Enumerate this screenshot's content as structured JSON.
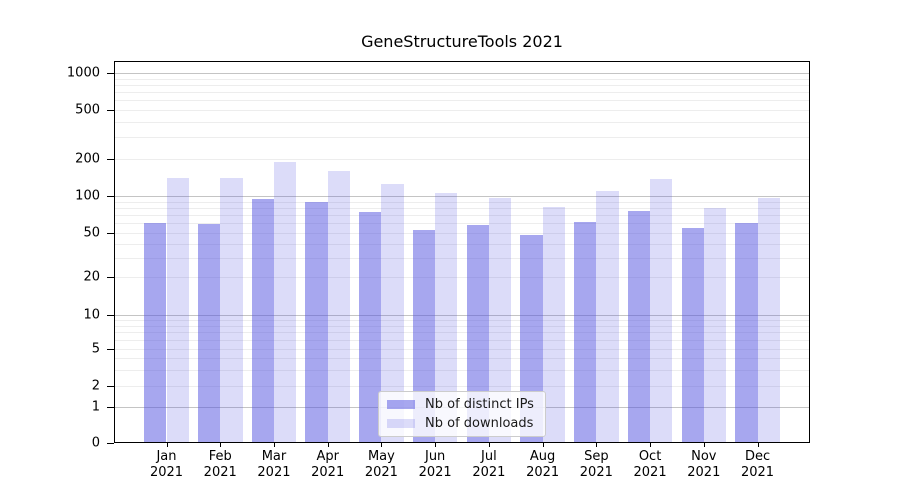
{
  "chart_data": {
    "type": "bar",
    "title": "GeneStructureTools 2021",
    "categories": [
      "Jan\n2021",
      "Feb\n2021",
      "Mar\n2021",
      "Apr\n2021",
      "May\n2021",
      "Jun\n2021",
      "Jul\n2021",
      "Aug\n2021",
      "Sep\n2021",
      "Oct\n2021",
      "Nov\n2021",
      "Dec\n2021"
    ],
    "series": [
      {
        "name": "Nb of distinct IPs",
        "color": "rgba(80,80,224,0.5)",
        "color_hex_on_white": "#a8a8f0",
        "values": [
          60,
          59,
          95,
          89,
          74,
          53,
          58,
          48,
          62,
          75,
          55,
          60
        ]
      },
      {
        "name": "Nb of downloads",
        "color": "rgba(80,80,224,0.2)",
        "color_hex_on_white": "#dcdcf9",
        "values": [
          140,
          140,
          188,
          160,
          125,
          105,
          96,
          82,
          110,
          138,
          80,
          96
        ]
      }
    ],
    "xlabel": "",
    "ylabel": "",
    "y_axis": {
      "scale": "log (symlog with linear 0-1 segment)",
      "tick_labels": [
        1000,
        500,
        200,
        100,
        50,
        20,
        10,
        5,
        2,
        1,
        0
      ],
      "ylim": [
        0,
        1250
      ]
    },
    "grid": "on (major + faint log minors)",
    "legend": {
      "position": "lower center inside plot"
    }
  }
}
